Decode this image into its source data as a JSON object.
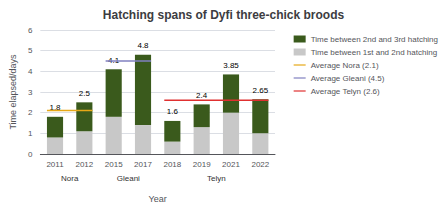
{
  "chart_data": {
    "type": "bar",
    "title": "Hatching spans of Dyfi three-chick broods",
    "xlabel": "Year",
    "ylabel": "Time elapsed/days",
    "categories": [
      "2011",
      "2012",
      "2015",
      "2017",
      "2018",
      "2019",
      "2021",
      "2022"
    ],
    "stacked": true,
    "series": [
      {
        "name": "Time between 1st and 2nd hatching",
        "color": "#c8c8c8",
        "values": [
          0.8,
          1.1,
          1.8,
          1.4,
          0.6,
          1.3,
          2.0,
          1.0
        ]
      },
      {
        "name": "Time between 2nd and 3rd hatching",
        "color": "#3a5a1c",
        "values": [
          1.0,
          1.4,
          2.3,
          3.4,
          1.0,
          1.1,
          1.85,
          1.65
        ]
      }
    ],
    "totals": [
      1.8,
      2.5,
      4.1,
      4.8,
      1.6,
      2.4,
      3.85,
      2.65
    ],
    "groups": [
      {
        "label": "Nora",
        "categories": [
          "2011",
          "2012"
        ],
        "average": 2.1,
        "average_label": "Average Nora (2.1)",
        "color": "#e6a817"
      },
      {
        "label": "Gleani",
        "categories": [
          "2015",
          "2017"
        ],
        "average": 4.5,
        "average_label": "Average Gleani (4.5)",
        "color": "#8080c0"
      },
      {
        "label": "Telyn",
        "categories": [
          "2018",
          "2019",
          "2021",
          "2022"
        ],
        "average": 2.6,
        "average_label": "Average Telyn (2.6)",
        "color": "#e03030"
      }
    ],
    "ylim": [
      0,
      6
    ],
    "yticks": [
      0,
      1,
      2,
      3,
      4,
      5,
      6
    ],
    "grid": true,
    "legend": "upper right"
  }
}
